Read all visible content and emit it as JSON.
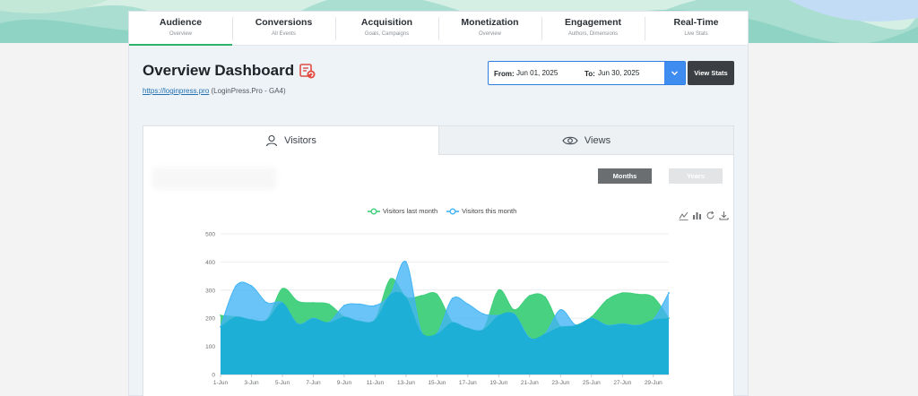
{
  "nav": {
    "tabs": [
      {
        "label": "Audience",
        "sub": "Overview"
      },
      {
        "label": "Conversions",
        "sub": "All Events"
      },
      {
        "label": "Acquisition",
        "sub": "Goals, Campaigns"
      },
      {
        "label": "Monetization",
        "sub": "Overview"
      },
      {
        "label": "Engagement",
        "sub": "Authors, Dimensions"
      },
      {
        "label": "Real-Time",
        "sub": "Live Stats"
      }
    ],
    "active_index": 0
  },
  "header": {
    "title": "Overview Dashboard",
    "site_link": "https://loginpress.pro",
    "site_name": "(LoginPress.Pro - GA4)"
  },
  "date_range": {
    "from_label": "From:",
    "from_value": "Jun 01, 2025",
    "to_label": "To:",
    "to_value": "Jun 30, 2025",
    "button_label": "View Stats"
  },
  "tabs": {
    "visitors": "Visitors",
    "views": "Views"
  },
  "period": {
    "months": "Months",
    "years": "Years"
  },
  "icons": {
    "title": "info-refresh-icon",
    "visitors_tab": "user-icon",
    "views_tab": "eye-icon",
    "toolbar": [
      "line-chart-icon",
      "bar-chart-icon",
      "restore-icon",
      "download-icon"
    ]
  },
  "colors": {
    "accent": "#2db36a",
    "last_month": "#3ecf7a",
    "this_month": "#41b4f5",
    "overlap": "#1aaed4"
  },
  "chart_data": {
    "type": "area",
    "x": [
      "1-Jun",
      "2-Jun",
      "3-Jun",
      "4-Jun",
      "5-Jun",
      "6-Jun",
      "7-Jun",
      "8-Jun",
      "9-Jun",
      "10-Jun",
      "11-Jun",
      "12-Jun",
      "13-Jun",
      "14-Jun",
      "15-Jun",
      "16-Jun",
      "17-Jun",
      "18-Jun",
      "19-Jun",
      "20-Jun",
      "21-Jun",
      "22-Jun",
      "23-Jun",
      "24-Jun",
      "25-Jun",
      "26-Jun",
      "27-Jun",
      "28-Jun",
      "29-Jun",
      "30-Jun"
    ],
    "xticks": [
      "1-Jun",
      "3-Jun",
      "5-Jun",
      "7-Jun",
      "9-Jun",
      "11-Jun",
      "13-Jun",
      "15-Jun",
      "17-Jun",
      "19-Jun",
      "21-Jun",
      "23-Jun",
      "25-Jun",
      "27-Jun",
      "29-Jun"
    ],
    "series": [
      {
        "name": "Visitors last month",
        "values": [
          210,
          205,
          195,
          195,
          305,
          260,
          255,
          250,
          205,
          190,
          195,
          340,
          275,
          280,
          285,
          185,
          165,
          160,
          300,
          230,
          280,
          275,
          170,
          175,
          205,
          265,
          290,
          285,
          275,
          200
        ]
      },
      {
        "name": "Visitors this month",
        "values": [
          170,
          315,
          315,
          255,
          255,
          180,
          200,
          185,
          245,
          250,
          245,
          285,
          400,
          150,
          145,
          270,
          250,
          215,
          210,
          215,
          130,
          145,
          230,
          175,
          200,
          175,
          180,
          175,
          195,
          290
        ]
      }
    ],
    "yticks": [
      0,
      100,
      200,
      300,
      400,
      500
    ],
    "ylim": [
      0,
      500
    ],
    "legend": "top-center"
  }
}
